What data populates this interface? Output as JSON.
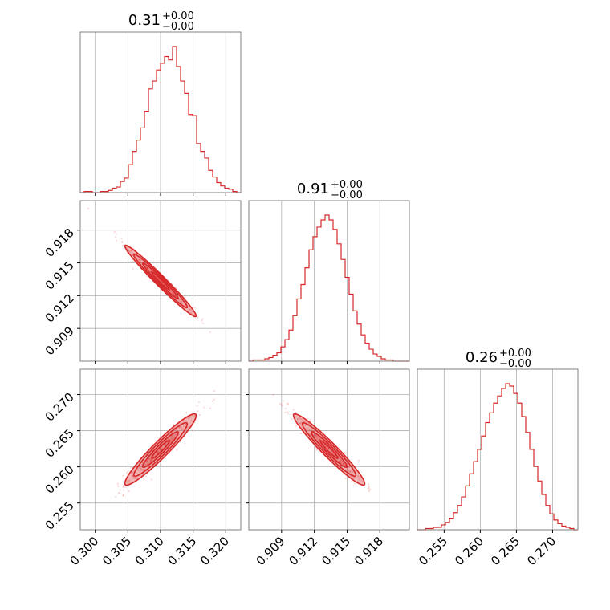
{
  "theme": {
    "accent": "#d62728",
    "grid": "#b0b0b0",
    "frame": "#808080"
  },
  "chart_data": {
    "type": "corner",
    "parameters": [
      {
        "title": {
          "value": "0.31",
          "sup": "+0.00",
          "sub": "−0.00"
        },
        "ticks": [
          0.3,
          0.305,
          0.31,
          0.315,
          0.32
        ],
        "tick_labels": [
          "0.300",
          "0.305",
          "0.310",
          "0.315",
          "0.320"
        ],
        "range": [
          0.2977,
          0.3223
        ]
      },
      {
        "title": {
          "value": "0.91",
          "sup": "+0.00",
          "sub": "−0.00"
        },
        "ticks": [
          0.909,
          0.912,
          0.915,
          0.918
        ],
        "tick_labels": [
          "0.909",
          "0.912",
          "0.915",
          "0.918"
        ],
        "range": [
          0.906,
          0.9207
        ]
      },
      {
        "title": {
          "value": "0.26",
          "sup": "+0.00",
          "sub": "−0.00"
        },
        "ticks": [
          0.255,
          0.26,
          0.265,
          0.27
        ],
        "tick_labels": [
          "0.255",
          "0.260",
          "0.265",
          "0.270"
        ],
        "range": [
          0.2513,
          0.2735
        ]
      }
    ],
    "histograms": [
      {
        "param": 0,
        "counts": [
          0,
          1,
          1,
          0,
          0,
          1,
          1,
          2,
          4,
          5,
          10,
          13,
          25,
          37,
          47,
          58,
          73,
          93,
          100,
          110,
          116,
          122,
          119,
          131,
          113,
          100,
          89,
          70,
          69,
          44,
          37,
          31,
          20,
          14,
          9,
          6,
          4,
          3,
          1,
          0
        ]
      },
      {
        "param": 1,
        "counts": [
          0,
          1,
          1,
          1,
          2,
          3,
          5,
          7,
          12,
          18,
          26,
          38,
          52,
          64,
          78,
          93,
          104,
          112,
          118,
          122,
          118,
          110,
          98,
          85,
          70,
          56,
          42,
          31,
          22,
          15,
          10,
          6,
          4,
          2,
          1,
          1,
          0,
          0,
          0,
          0
        ]
      },
      {
        "param": 2,
        "counts": [
          0,
          0,
          1,
          1,
          2,
          2,
          4,
          6,
          9,
          14,
          20,
          27,
          36,
          46,
          56,
          66,
          77,
          88,
          96,
          104,
          110,
          116,
          120,
          118,
          112,
          104,
          93,
          80,
          66,
          52,
          40,
          29,
          20,
          13,
          8,
          5,
          3,
          2,
          1,
          0
        ]
      }
    ],
    "pairs": [
      {
        "x": 0,
        "y": 1,
        "correlation": -0.98
      },
      {
        "x": 0,
        "y": 2,
        "correlation": 0.95
      },
      {
        "x": 1,
        "y": 2,
        "correlation": -0.96
      }
    ],
    "grid": true,
    "contour_levels": [
      0.5,
      1.0,
      1.5,
      2.0
    ]
  }
}
